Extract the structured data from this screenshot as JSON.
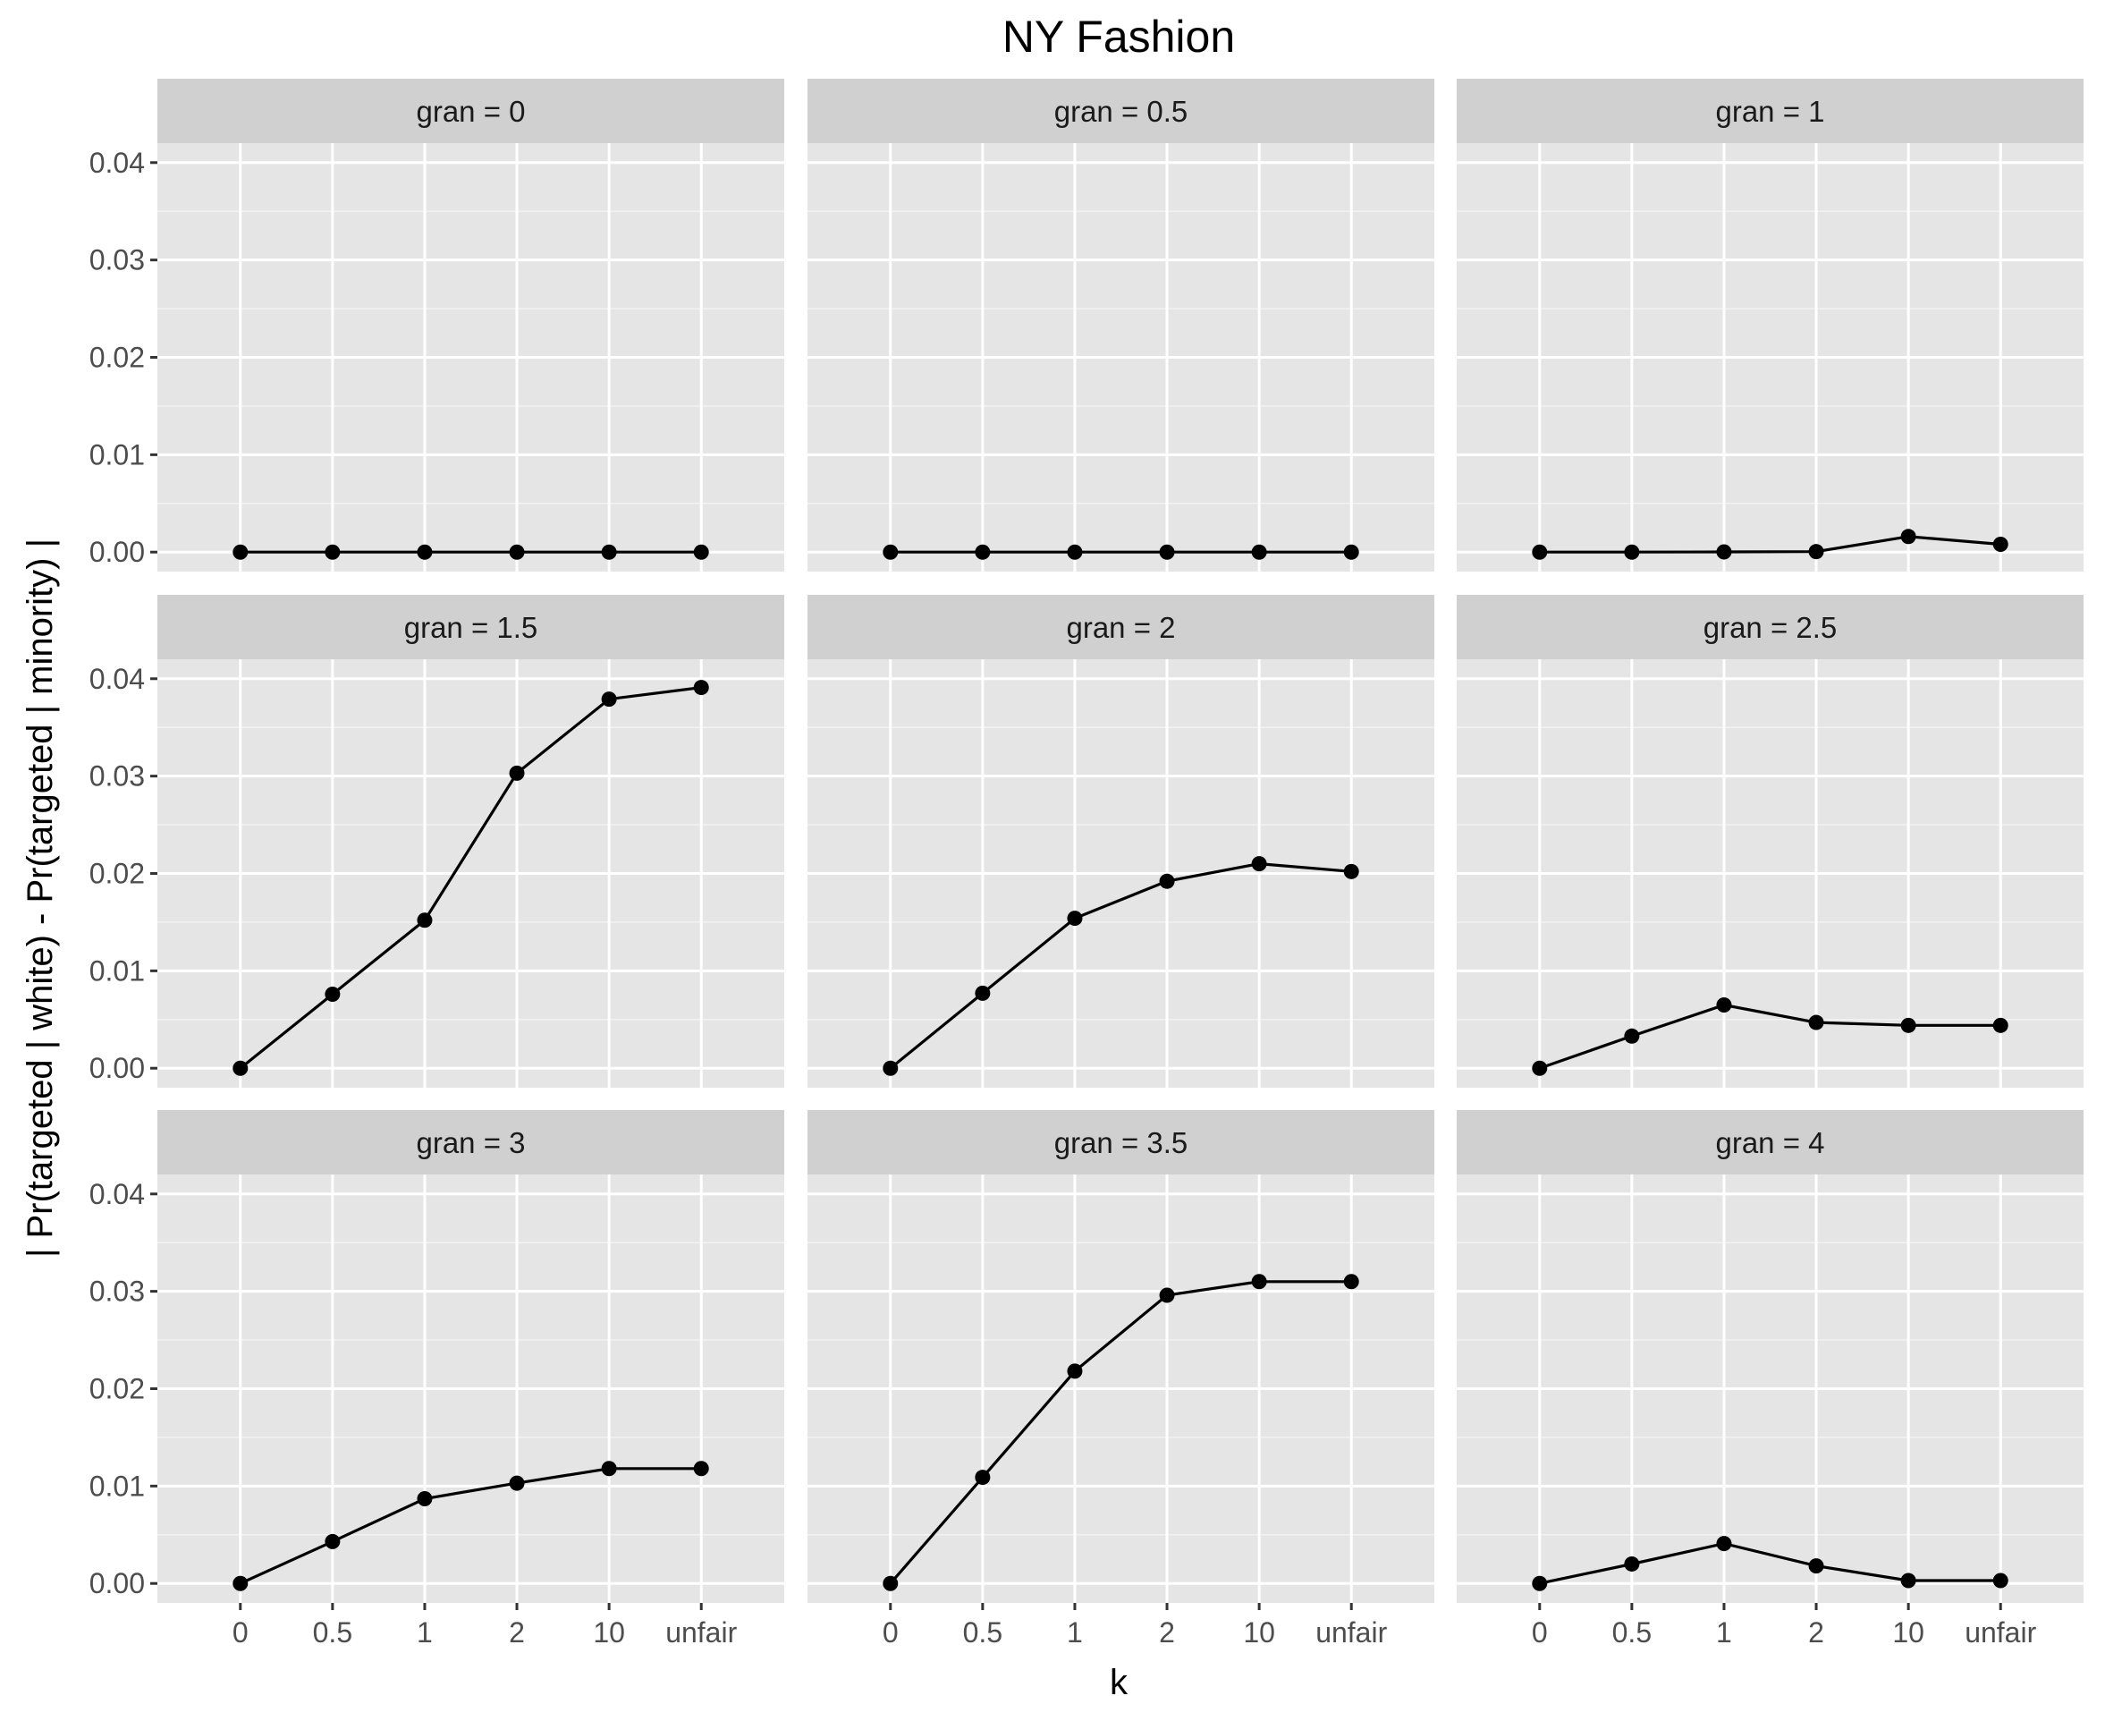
{
  "chart_data": {
    "type": "line",
    "title": "NY Fashion",
    "xlabel": "k",
    "ylabel": "| Pr(targeted | white) - Pr(targeted | minority) |",
    "categories": [
      "0",
      "0.5",
      "1",
      "2",
      "10",
      "unfair"
    ],
    "ylim": [
      -0.002,
      0.042
    ],
    "y_ticks": [
      0.0,
      0.01,
      0.02,
      0.03,
      0.04
    ],
    "y_tick_labels": [
      "0.00",
      "0.01",
      "0.02",
      "0.03",
      "0.04"
    ],
    "grid": true,
    "facets": [
      {
        "label": "gran =  0",
        "values": [
          0,
          0,
          0,
          0,
          0,
          0
        ]
      },
      {
        "label": "gran =  0.5",
        "values": [
          0,
          0,
          0,
          0,
          0,
          0
        ]
      },
      {
        "label": "gran =  1",
        "values": [
          0,
          0,
          2e-05,
          5e-05,
          0.0016,
          0.0008
        ]
      },
      {
        "label": "gran =  1.5",
        "values": [
          0,
          0.0076,
          0.0152,
          0.0303,
          0.0379,
          0.0391
        ]
      },
      {
        "label": "gran =  2",
        "values": [
          0,
          0.0077,
          0.0154,
          0.0192,
          0.021,
          0.0202
        ]
      },
      {
        "label": "gran =  2.5",
        "values": [
          0,
          0.0033,
          0.0065,
          0.0047,
          0.0044,
          0.0044
        ]
      },
      {
        "label": "gran =  3",
        "values": [
          0,
          0.0043,
          0.0087,
          0.0103,
          0.0118,
          0.0118
        ]
      },
      {
        "label": "gran =  3.5",
        "values": [
          0,
          0.0109,
          0.0218,
          0.0296,
          0.031,
          0.031
        ]
      },
      {
        "label": "gran =  4",
        "values": [
          0,
          0.002,
          0.0041,
          0.0018,
          0.0003,
          0.0003
        ]
      }
    ]
  }
}
